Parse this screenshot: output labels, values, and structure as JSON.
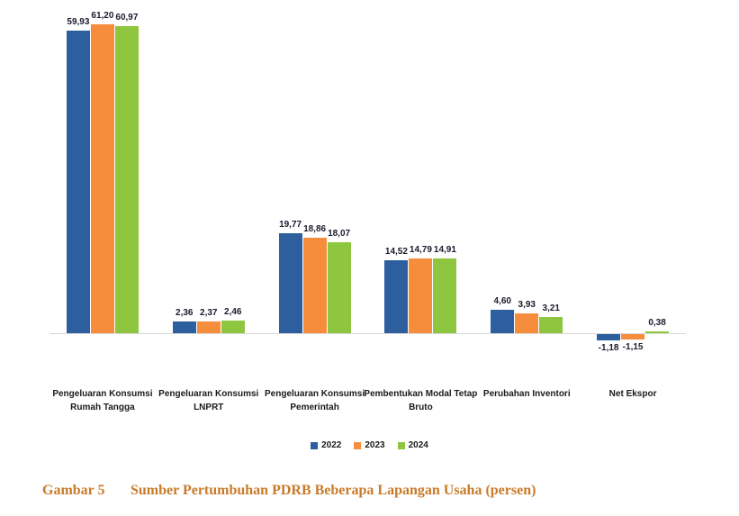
{
  "caption": {
    "label": "Gambar 5",
    "title": "Sumber Pertumbuhan PDRB Beberapa Lapangan Usaha (persen)"
  },
  "chart_data": {
    "type": "bar",
    "title": "Sumber Pertumbuhan PDRB Beberapa Lapangan Usaha (persen)",
    "categories": [
      "Pengeluaran Konsumsi Rumah Tangga",
      "Pengeluaran Konsumsi LNPRT",
      "Pengeluaran Konsumsi Pemerintah",
      "Pembentukan Modal Tetap Bruto",
      "Perubahan Inventori",
      "Net Ekspor"
    ],
    "category_lines": [
      [
        "Pengeluaran Konsumsi",
        "Rumah Tangga"
      ],
      [
        "Pengeluaran Konsumsi",
        "LNPRT"
      ],
      [
        "Pengeluaran Konsumsi",
        "Pemerintah"
      ],
      [
        "Pembentukan Modal Tetap",
        "Bruto"
      ],
      [
        "Perubahan Inventori"
      ],
      [
        "Net Ekspor"
      ]
    ],
    "series": [
      {
        "name": "2022",
        "color": "#2d5e9e",
        "values": [
          59.93,
          2.36,
          19.77,
          14.52,
          4.6,
          -1.18
        ],
        "labels": [
          "59,93",
          "2,36",
          "19,77",
          "14,52",
          "4,60",
          "-1,18"
        ]
      },
      {
        "name": "2023",
        "color": "#f68d3d",
        "values": [
          61.2,
          2.37,
          18.86,
          14.79,
          3.93,
          -1.15
        ],
        "labels": [
          "61,20",
          "2,37",
          "18,86",
          "14,79",
          "3,93",
          "-1,15"
        ]
      },
      {
        "name": "2024",
        "color": "#8ec63f",
        "values": [
          60.97,
          2.46,
          18.07,
          14.91,
          3.21,
          0.38
        ],
        "labels": [
          "60,97",
          "2,46",
          "18,07",
          "14,91",
          "3,21",
          "0,38"
        ]
      }
    ],
    "xlabel": "",
    "ylabel": "",
    "ylim": [
      -5,
      65
    ],
    "grid": false,
    "legend_position": "bottom",
    "value_label_decimal_separator": ","
  }
}
